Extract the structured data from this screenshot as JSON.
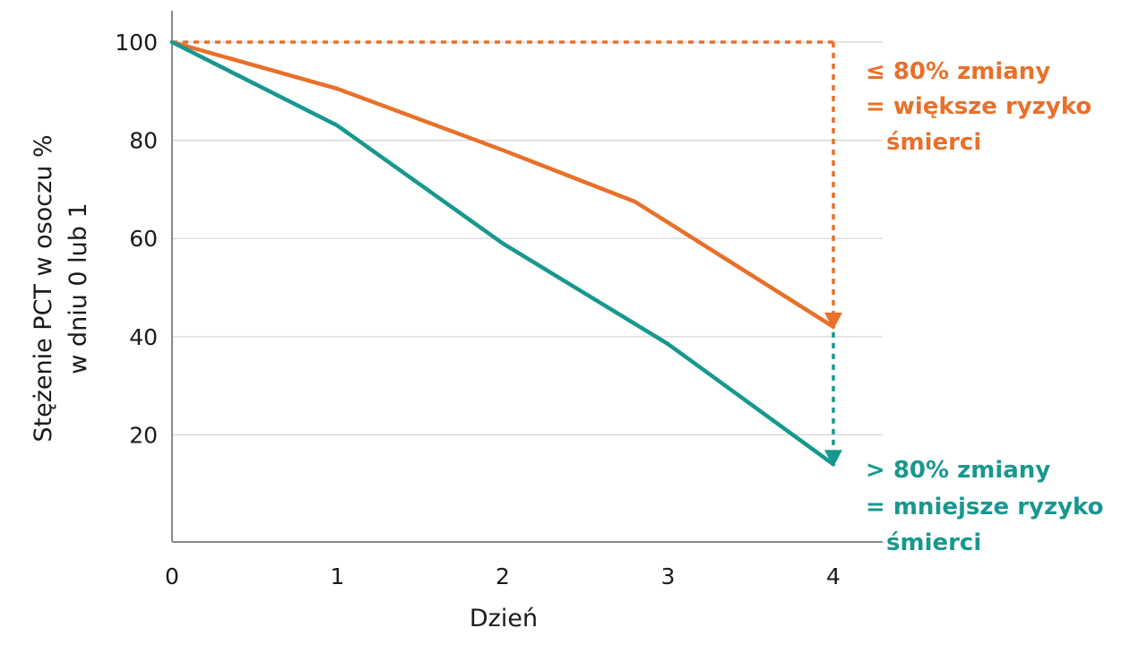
{
  "chart_data": {
    "type": "line",
    "xlabel": "Dzień",
    "ylabel": [
      "Stężenie PCT w osoczu %",
      "w dniu 0 lub 1"
    ],
    "xlim": [
      0,
      4
    ],
    "ylim": [
      0,
      100
    ],
    "x_ticks": [
      "0",
      "1",
      "2",
      "3",
      "4"
    ],
    "y_ticks": [
      "100",
      "80",
      "60",
      "40",
      "20"
    ],
    "grid": true,
    "series": [
      {
        "color": "#e8702a",
        "x": [
          0,
          1,
          2,
          2.8,
          4
        ],
        "y": [
          100,
          90.5,
          78,
          67.5,
          42
        ]
      },
      {
        "color": "#17988f",
        "x": [
          0,
          1,
          2,
          3,
          4
        ],
        "y": [
          100,
          83,
          59,
          38.5,
          14
        ]
      }
    ],
    "annotations": [
      {
        "color": "#e8702a",
        "lines": [
          "≤ 80%  zmiany",
          "= większe ryzyko",
          "śmierci"
        ]
      },
      {
        "color": "#17988f",
        "lines": [
          "> 80%  zmiany",
          "= mniejsze ryzyko",
          "śmierci"
        ]
      }
    ]
  }
}
